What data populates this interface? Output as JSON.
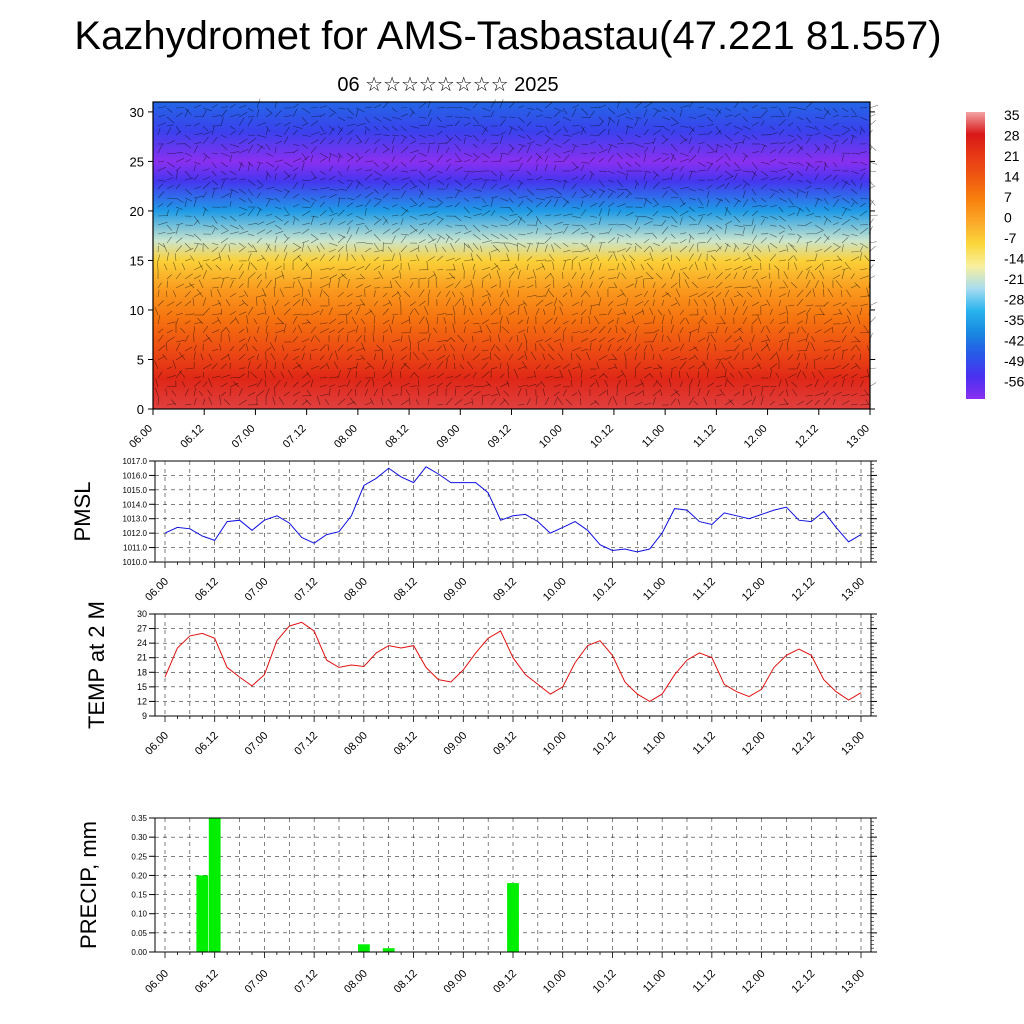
{
  "title": "Kazhydromet for AMS-Tasbastau(47.221 81.557)",
  "subtitle": "06 ☆☆☆☆☆☆☆☆ 2025",
  "chart_data": [
    {
      "type": "heatmap",
      "panel": "cross-section",
      "y_ticks": [
        "0",
        "5",
        "10",
        "15",
        "20",
        "25",
        "30"
      ],
      "ylim": [
        0,
        31
      ],
      "x_ticks": [
        "06.00",
        "06.12",
        "07.00",
        "07.12",
        "08.00",
        "08.12",
        "09.00",
        "09.12",
        "10.00",
        "10.12",
        "11.00",
        "11.12",
        "12.00",
        "12.12",
        "13.00"
      ],
      "colorbar_labels": [
        "35",
        "28",
        "21",
        "14",
        "7",
        "0",
        "-7",
        "-14",
        "-21",
        "-28",
        "-35",
        "-42",
        "-49",
        "-56"
      ],
      "colorbar_colors": [
        "#f3a3a3",
        "#d81818",
        "#e83a16",
        "#f05a10",
        "#f8820e",
        "#fbaa2a",
        "#fbd83c",
        "#f8f0a0",
        "#a8dcf0",
        "#28b4ee",
        "#1888e0",
        "#2858e8",
        "#4a30f0",
        "#8a30f0"
      ],
      "colorscale_profile": [
        {
          "level": 0,
          "value": 30
        },
        {
          "level": 3,
          "value": 25
        },
        {
          "level": 6,
          "value": 17
        },
        {
          "level": 9,
          "value": 10
        },
        {
          "level": 12,
          "value": 3
        },
        {
          "level": 15,
          "value": -6
        },
        {
          "level": 17,
          "value": -18
        },
        {
          "level": 20,
          "value": -32
        },
        {
          "level": 23,
          "value": -48
        },
        {
          "level": 25,
          "value": -56
        },
        {
          "level": 28,
          "value": -46
        },
        {
          "level": 31,
          "value": -40
        }
      ]
    },
    {
      "type": "line",
      "panel": "pmsl",
      "ylabel": "PMSL",
      "ylim": [
        1010.0,
        1017.0
      ],
      "y_ticks": [
        "1010.0",
        "1011.0",
        "1012.0",
        "1013.0",
        "1014.0",
        "1015.0",
        "1016.0",
        "1017.0"
      ],
      "x_ticks": [
        "06.00",
        "06.12",
        "07.00",
        "07.12",
        "08.00",
        "08.12",
        "09.00",
        "09.12",
        "10.00",
        "10.12",
        "11.00",
        "11.12",
        "12.00",
        "12.12",
        "13.00"
      ],
      "x": [
        0,
        3,
        6,
        9,
        12,
        15,
        18,
        21,
        24,
        27,
        30,
        33,
        36,
        39,
        42,
        45,
        48,
        51,
        54,
        57,
        60,
        63,
        66,
        69,
        72,
        75,
        78,
        81,
        84,
        87,
        90,
        93,
        96,
        99,
        102,
        105,
        108,
        111,
        114,
        117,
        120,
        123,
        126,
        129,
        132,
        135,
        138,
        141,
        144,
        147,
        150,
        153,
        156,
        159,
        162,
        165,
        168
      ],
      "values": [
        1012.0,
        1012.4,
        1012.3,
        1011.8,
        1011.5,
        1012.8,
        1012.9,
        1012.2,
        1012.9,
        1013.2,
        1012.7,
        1011.7,
        1011.3,
        1011.9,
        1012.1,
        1013.2,
        1015.3,
        1015.8,
        1016.5,
        1015.9,
        1015.5,
        1016.6,
        1016.1,
        1015.5,
        1015.5,
        1015.5,
        1014.8,
        1012.9,
        1013.2,
        1013.3,
        1012.8,
        1012.0,
        1012.4,
        1012.8,
        1012.2,
        1011.2,
        1010.8,
        1010.9,
        1010.7,
        1010.9,
        1012.0,
        1013.7,
        1013.6,
        1012.8,
        1012.6,
        1013.4,
        1013.2,
        1013.0,
        1013.3,
        1013.6,
        1013.8,
        1012.9,
        1012.8,
        1013.5,
        1012.4,
        1011.4,
        1011.9
      ],
      "line_color": "#1010e0"
    },
    {
      "type": "line",
      "panel": "temp",
      "ylabel": "TEMP at 2 M",
      "ylim": [
        9,
        30
      ],
      "y_ticks": [
        "9",
        "12",
        "15",
        "18",
        "21",
        "24",
        "27",
        "30"
      ],
      "x_ticks": [
        "06.00",
        "06.12",
        "07.00",
        "07.12",
        "08.00",
        "08.12",
        "09.00",
        "09.12",
        "10.00",
        "10.12",
        "11.00",
        "11.12",
        "12.00",
        "12.12",
        "13.00"
      ],
      "x": [
        0,
        3,
        6,
        9,
        12,
        15,
        18,
        21,
        24,
        27,
        30,
        33,
        36,
        39,
        42,
        45,
        48,
        51,
        54,
        57,
        60,
        63,
        66,
        69,
        72,
        75,
        78,
        81,
        84,
        87,
        90,
        93,
        96,
        99,
        102,
        105,
        108,
        111,
        114,
        117,
        120,
        123,
        126,
        129,
        132,
        135,
        138,
        141,
        144,
        147,
        150,
        153,
        156,
        159,
        162,
        165,
        168
      ],
      "values": [
        17.0,
        23.0,
        25.5,
        26.0,
        25.0,
        19.0,
        17.0,
        15.2,
        17.5,
        24.5,
        27.5,
        28.3,
        26.5,
        20.5,
        19.0,
        19.5,
        19.2,
        22.0,
        23.5,
        23.0,
        23.5,
        19.0,
        16.5,
        16.0,
        18.5,
        22.0,
        25.0,
        26.5,
        21.0,
        17.5,
        15.5,
        13.5,
        15.0,
        20.0,
        23.5,
        24.5,
        21.5,
        16.0,
        13.5,
        12.0,
        13.5,
        17.5,
        20.5,
        22.0,
        21.0,
        15.5,
        14.0,
        13.0,
        14.5,
        19.0,
        21.5,
        22.8,
        21.5,
        16.5,
        14.0,
        12.3,
        13.8
      ],
      "line_color": "#e01010"
    },
    {
      "type": "bar",
      "panel": "precip",
      "ylabel": "PRECIP, mm",
      "ylim": [
        0,
        0.35
      ],
      "y_ticks": [
        "0.00",
        "0.05",
        "0.10",
        "0.15",
        "0.20",
        "0.25",
        "0.30",
        "0.35"
      ],
      "x_ticks": [
        "06.00",
        "06.12",
        "07.00",
        "07.12",
        "08.00",
        "08.12",
        "09.00",
        "09.12",
        "10.00",
        "10.12",
        "11.00",
        "11.12",
        "12.00",
        "12.12",
        "13.00"
      ],
      "x": [
        9,
        12,
        48,
        54,
        84
      ],
      "values": [
        0.2,
        0.35,
        0.02,
        0.01,
        0.18
      ],
      "bar_color": "#00ee00"
    }
  ]
}
